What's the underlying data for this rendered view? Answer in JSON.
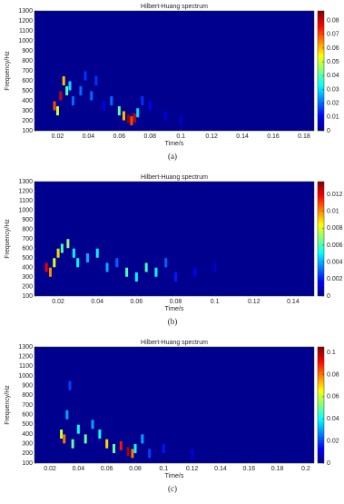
{
  "chart_data": [
    {
      "type": "heatmap",
      "title": "Hilbert-Huang spectrum",
      "xlabel": "Time/s",
      "ylabel": "Frequency/Hz",
      "caption": "(a)",
      "xlim": [
        0.005,
        0.1865
      ],
      "xticks": [
        0.02,
        0.04,
        0.06,
        0.08,
        0.1,
        0.12,
        0.14,
        0.16,
        0.18
      ],
      "ylim": [
        100,
        1300
      ],
      "yticks": [
        100,
        200,
        300,
        400,
        500,
        600,
        700,
        800,
        900,
        1000,
        1100,
        1200,
        1300
      ],
      "clim": [
        0,
        0.087
      ],
      "cticks": [
        0,
        0.01,
        0.02,
        0.03,
        0.04,
        0.05,
        0.06,
        0.07,
        0.08
      ],
      "x": [
        0.018,
        0.02,
        0.022,
        0.024,
        0.026,
        0.028,
        0.03,
        0.035,
        0.038,
        0.042,
        0.045,
        0.05,
        0.055,
        0.06,
        0.063,
        0.066,
        0.068,
        0.07,
        0.072,
        0.075,
        0.08,
        0.09,
        0.1
      ],
      "y": [
        350,
        300,
        450,
        600,
        500,
        550,
        400,
        500,
        650,
        450,
        600,
        350,
        400,
        300,
        250,
        220,
        200,
        230,
        280,
        400,
        350,
        250,
        200
      ],
      "values": [
        0.07,
        0.05,
        0.08,
        0.06,
        0.04,
        0.03,
        0.02,
        0.02,
        0.015,
        0.02,
        0.015,
        0.01,
        0.02,
        0.04,
        0.06,
        0.085,
        0.07,
        0.08,
        0.03,
        0.015,
        0.01,
        0.008,
        0.006
      ]
    },
    {
      "type": "heatmap",
      "title": "Hilbert-Huang spectrum",
      "xlabel": "Time/s",
      "ylabel": "Frequency/Hz",
      "caption": "(b)",
      "xlim": [
        0.0079,
        0.1507
      ],
      "xticks": [
        0.02,
        0.04,
        0.06,
        0.08,
        0.1,
        0.12,
        0.14
      ],
      "ylim": [
        100,
        1300
      ],
      "yticks": [
        100,
        200,
        300,
        400,
        500,
        600,
        700,
        800,
        900,
        1000,
        1100,
        1200,
        1300
      ],
      "clim": [
        0,
        0.0135
      ],
      "cticks": [
        0,
        0.002,
        0.004,
        0.006,
        0.008,
        0.01,
        0.012
      ],
      "x": [
        0.014,
        0.016,
        0.018,
        0.02,
        0.022,
        0.025,
        0.028,
        0.03,
        0.035,
        0.04,
        0.045,
        0.05,
        0.055,
        0.06,
        0.065,
        0.07,
        0.075,
        0.08,
        0.09,
        0.1
      ],
      "y": [
        400,
        350,
        450,
        550,
        600,
        650,
        550,
        450,
        500,
        550,
        400,
        450,
        350,
        300,
        400,
        350,
        450,
        300,
        350,
        400
      ],
      "values": [
        0.012,
        0.01,
        0.008,
        0.009,
        0.006,
        0.007,
        0.005,
        0.005,
        0.004,
        0.005,
        0.004,
        0.003,
        0.006,
        0.005,
        0.006,
        0.005,
        0.003,
        0.002,
        0.0015,
        0.001
      ]
    },
    {
      "type": "heatmap",
      "title": "Hilbert-Huang spectrum",
      "xlabel": "Time/s",
      "ylabel": "Frequency/Hz",
      "caption": "(c)",
      "xlim": [
        0.0091,
        0.2058
      ],
      "xticks": [
        0.02,
        0.04,
        0.06,
        0.08,
        0.1,
        0.12,
        0.14,
        0.16,
        0.18,
        0.2
      ],
      "ylim": [
        100,
        1300
      ],
      "yticks": [
        100,
        200,
        300,
        400,
        500,
        600,
        700,
        800,
        900,
        1000,
        1100,
        1200,
        1300
      ],
      "clim": [
        0,
        0.105
      ],
      "cticks": [
        0,
        0.02,
        0.04,
        0.06,
        0.08,
        0.1
      ],
      "x": [
        0.028,
        0.03,
        0.032,
        0.034,
        0.036,
        0.04,
        0.045,
        0.05,
        0.055,
        0.06,
        0.065,
        0.07,
        0.075,
        0.078,
        0.08,
        0.085,
        0.09,
        0.1,
        0.12
      ],
      "y": [
        400,
        350,
        600,
        900,
        300,
        450,
        350,
        500,
        400,
        300,
        250,
        280,
        220,
        200,
        250,
        350,
        200,
        250,
        200
      ],
      "values": [
        0.06,
        0.08,
        0.03,
        0.02,
        0.05,
        0.04,
        0.05,
        0.03,
        0.04,
        0.07,
        0.05,
        0.09,
        0.1,
        0.08,
        0.04,
        0.03,
        0.02,
        0.015,
        0.01
      ]
    }
  ]
}
